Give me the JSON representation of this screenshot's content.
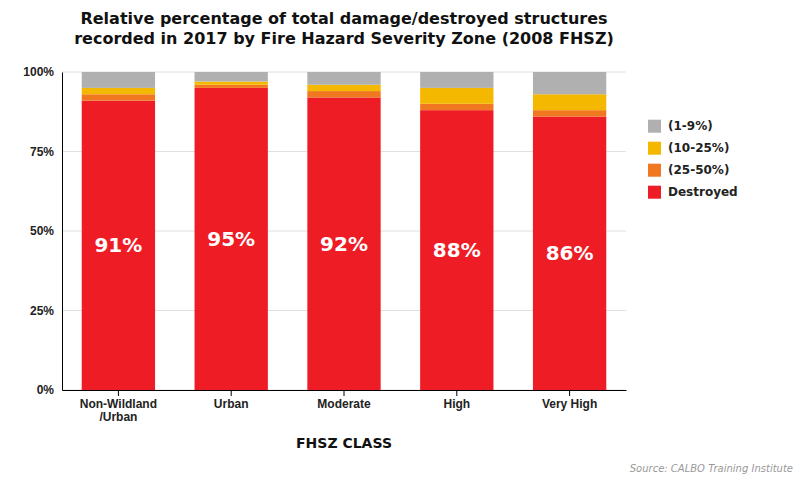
{
  "chart_data": {
    "type": "bar",
    "stacked": true,
    "title": "Relative percentage of total damage/destroyed structures",
    "subtitle": "recorded in 2017 by Fire Hazard Severity Zone (2008 FHSZ)",
    "xlabel": "FHSZ CLASS",
    "annotations": [
      "Source: CALBO Training Institute"
    ],
    "categories": [
      "Non-Wildland\n/Urban",
      "Urban",
      "Moderate",
      "High",
      "Very High"
    ],
    "series": [
      {
        "name": "Destroyed",
        "color": "#ee1c25",
        "values": [
          91,
          95,
          92,
          88,
          86
        ],
        "data_labels": true,
        "value_labels": [
          "91%",
          "95%",
          "92%",
          "88%",
          "86%"
        ]
      },
      {
        "name": "(25-50%)",
        "color": "#f07820",
        "values": [
          2,
          1,
          2,
          2,
          2
        ]
      },
      {
        "name": "(10-25%)",
        "color": "#f5b800",
        "values": [
          2,
          1,
          2,
          5,
          5
        ]
      },
      {
        "name": "(1-9%)",
        "color": "#b0b0b0",
        "values": [
          5,
          3,
          4,
          5,
          7
        ]
      }
    ],
    "ylim": [
      0,
      100
    ],
    "yticks": [
      {
        "value": 0,
        "label": "0%"
      },
      {
        "value": 25,
        "label": "25%"
      },
      {
        "value": 50,
        "label": "50%"
      },
      {
        "value": 75,
        "label": "75%"
      },
      {
        "value": 100,
        "label": "100%"
      }
    ],
    "grid": true,
    "legend": "right"
  }
}
